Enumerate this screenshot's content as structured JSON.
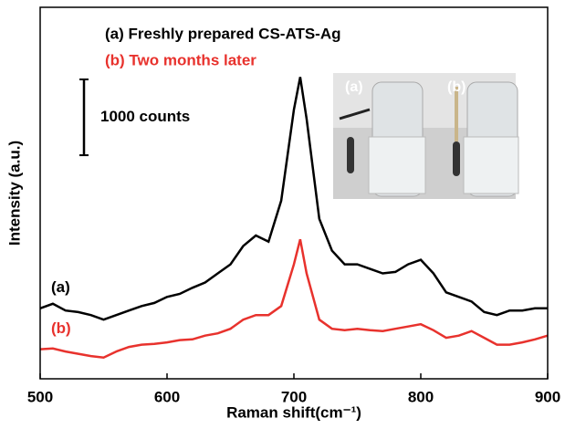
{
  "chart_data": {
    "type": "line",
    "x_label": "Raman shift(cm⁻¹)",
    "y_label": "Intensity (a.u.)",
    "x": [
      500,
      510,
      520,
      530,
      540,
      550,
      560,
      570,
      580,
      590,
      600,
      610,
      620,
      630,
      640,
      650,
      660,
      670,
      680,
      690,
      700,
      705,
      710,
      720,
      730,
      740,
      750,
      760,
      770,
      780,
      790,
      800,
      810,
      820,
      830,
      840,
      850,
      860,
      870,
      880,
      890,
      900
    ],
    "series": [
      {
        "name": "(a) Freshly prepared CS-ATS-Ag",
        "label": "(a)",
        "color": "#000000",
        "values": [
          930,
          990,
          900,
          880,
          840,
          780,
          840,
          900,
          960,
          1000,
          1080,
          1120,
          1200,
          1270,
          1390,
          1510,
          1750,
          1890,
          1810,
          2350,
          3550,
          3980,
          3430,
          2110,
          1690,
          1510,
          1510,
          1450,
          1390,
          1410,
          1510,
          1570,
          1390,
          1140,
          1080,
          1020,
          880,
          840,
          900,
          900,
          930,
          930
        ]
      },
      {
        "name": "(b) Two months later",
        "label": "(b)",
        "color": "#e8322d",
        "values": [
          390,
          400,
          360,
          330,
          300,
          280,
          360,
          420,
          450,
          460,
          480,
          510,
          520,
          570,
          600,
          660,
          780,
          840,
          840,
          960,
          1510,
          1840,
          1390,
          780,
          660,
          640,
          660,
          640,
          630,
          660,
          690,
          720,
          640,
          540,
          570,
          630,
          540,
          450,
          450,
          480,
          520,
          570
        ]
      }
    ],
    "xlim": [
      500,
      900
    ],
    "xticks": [
      500,
      600,
      700,
      800,
      900
    ],
    "ylim": [
      0,
      4900
    ],
    "scale_bar": {
      "value": 1000,
      "label": "1000 counts"
    },
    "inset_labels": [
      "(a)",
      "(b)"
    ]
  }
}
